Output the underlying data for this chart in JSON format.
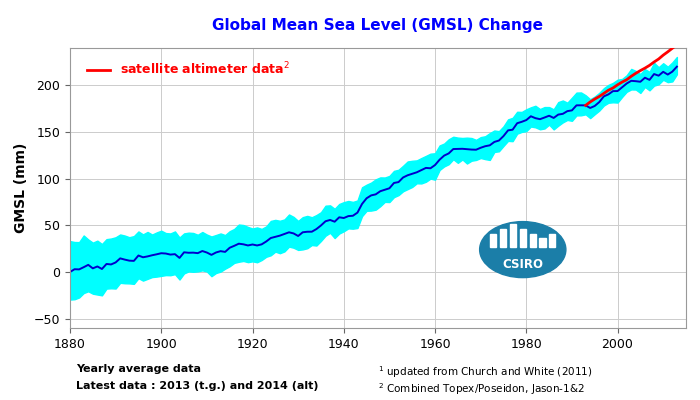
{
  "legend_label_satellite": "satellite altimeter data",
  "legend_color_satellite": "#FF0000",
  "ylabel": "GMSL (mm)",
  "xlim": [
    1880,
    2015
  ],
  "ylim": [
    -60,
    240
  ],
  "yticks": [
    -50,
    0,
    50,
    100,
    150,
    200
  ],
  "xticks": [
    1880,
    1900,
    1920,
    1940,
    1960,
    1980,
    2000
  ],
  "tide_color": "#0000CC",
  "tide_fill_color": "#00FFFF",
  "satellite_color": "#FF0000",
  "background_color": "#FFFFFF",
  "grid_color": "#CCCCCC",
  "note1": "Yearly average data",
  "note2": "Latest data : 2013 (t.g.) and 2014 (alt)",
  "footnote1": "updated from Church and White (2011)",
  "footnote2": "Combined Topex/Poseidon, Jason-1&2",
  "csiro_circle_color": "#1B7EA8",
  "tide_start_year": 1880,
  "tide_end_year": 2013,
  "satellite_start_year": 1993,
  "satellite_end_year": 2014
}
